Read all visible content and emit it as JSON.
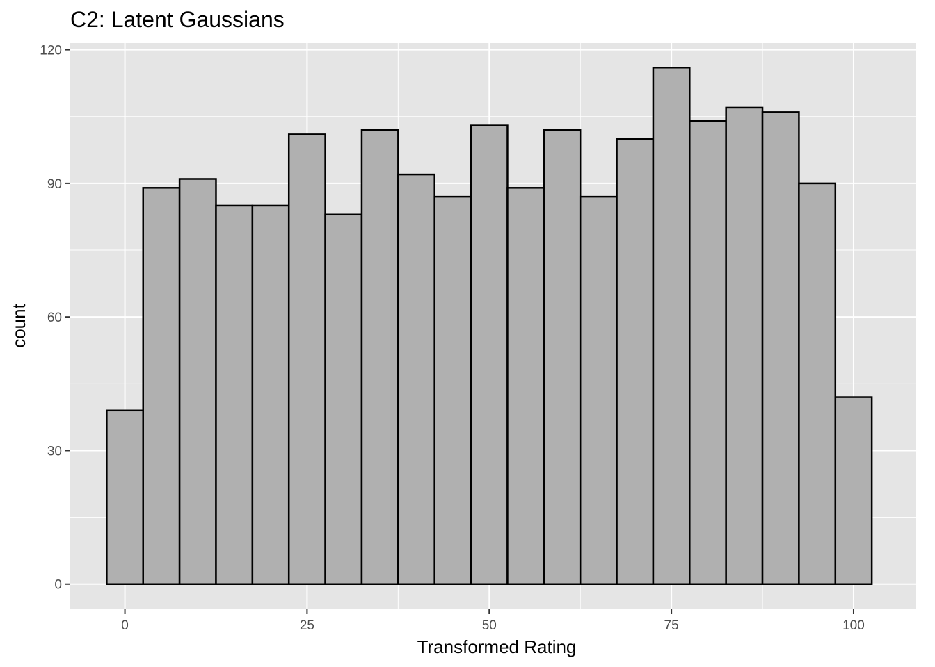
{
  "chart_data": {
    "type": "bar",
    "title": "C2: Latent Gaussians",
    "xlabel": "Transformed Rating",
    "ylabel": "count",
    "bin_width": 5,
    "bin_centers": [
      0,
      5,
      10,
      15,
      20,
      25,
      30,
      35,
      40,
      45,
      50,
      55,
      60,
      65,
      70,
      75,
      80,
      85,
      90,
      95,
      100
    ],
    "values": [
      39,
      89,
      91,
      85,
      85,
      101,
      83,
      102,
      92,
      87,
      103,
      89,
      102,
      87,
      100,
      116,
      104,
      107,
      106,
      90,
      42
    ],
    "xlim": [
      -7.5,
      108.5
    ],
    "ylim": [
      -5.5,
      121.5
    ],
    "x_ticks": [
      0,
      25,
      50,
      75,
      100
    ],
    "x_tick_labels": [
      "0",
      "25",
      "50",
      "75",
      "100"
    ],
    "y_ticks": [
      0,
      30,
      60,
      90,
      120
    ],
    "y_tick_labels": [
      "0",
      "30",
      "60",
      "90",
      "120"
    ],
    "grid": true,
    "colors": {
      "panel_background": "#e5e5e5",
      "grid_major": "#ffffff",
      "bar_fill": "#b0b0b0",
      "bar_outline": "#000000"
    }
  }
}
